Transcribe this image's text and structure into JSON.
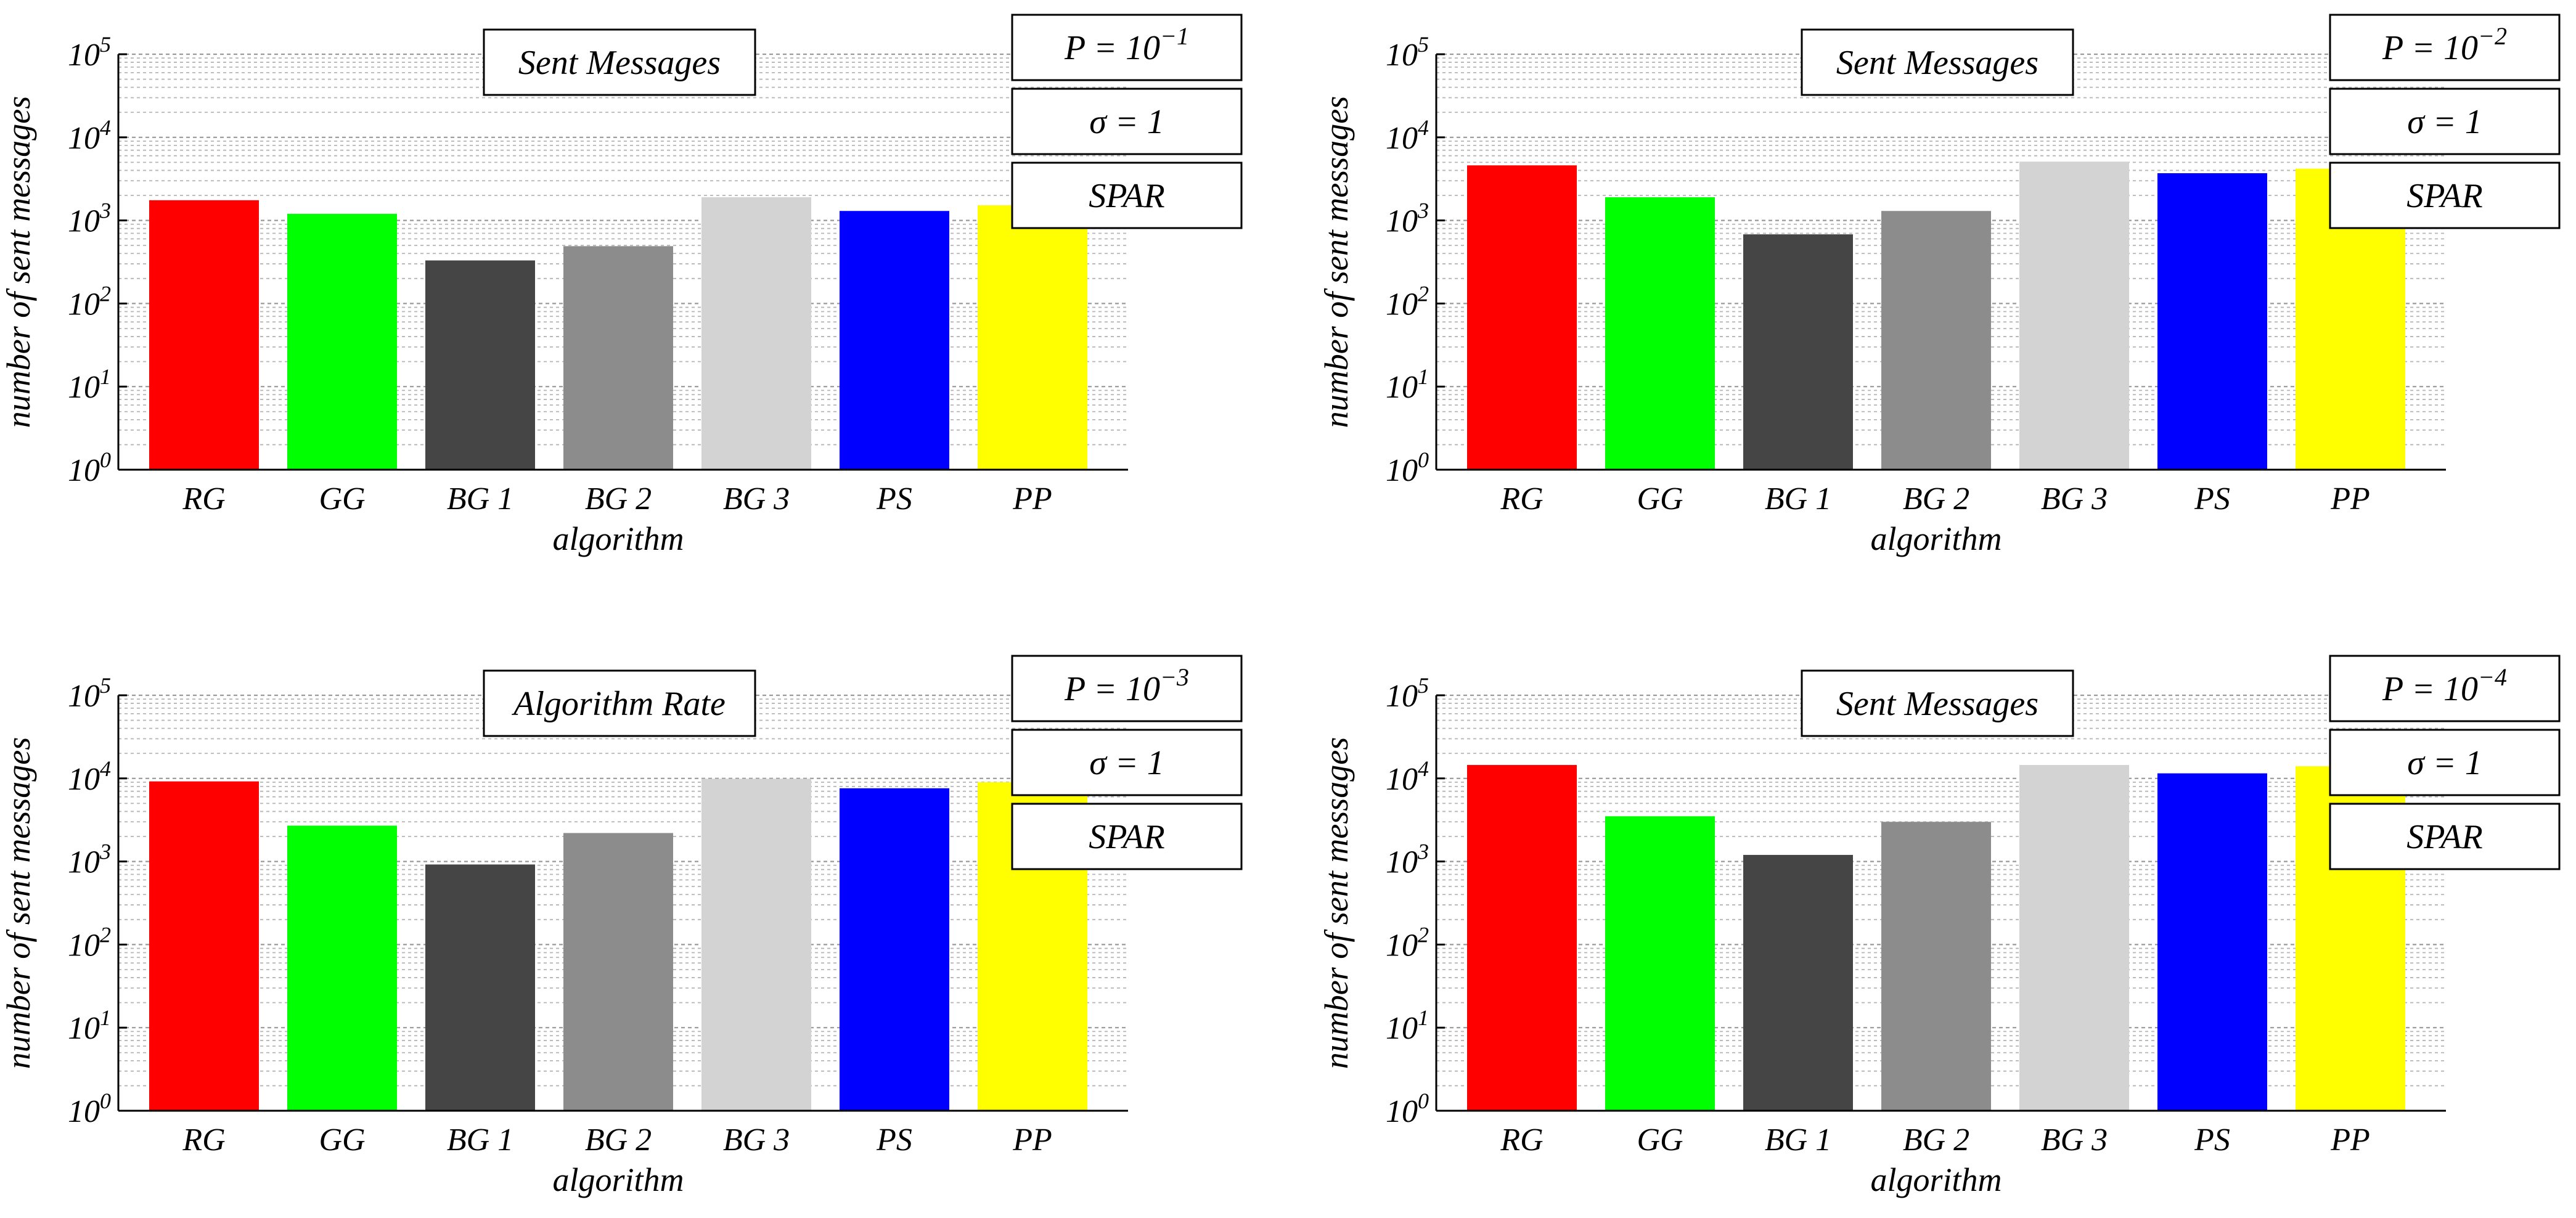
{
  "chart_data": [
    {
      "type": "bar",
      "title": "Sent Messages",
      "annotations": [
        {
          "p_base": "P = 10",
          "p_exp": "−1"
        },
        "σ = 1",
        "SPAR"
      ],
      "xlabel": "algorithm",
      "ylabel": "number of sent messages",
      "yscale": "log",
      "ylim": [
        1,
        100000
      ],
      "yticks": [
        {
          "base": "10",
          "exp": "0"
        },
        {
          "base": "10",
          "exp": "1"
        },
        {
          "base": "10",
          "exp": "2"
        },
        {
          "base": "10",
          "exp": "3"
        },
        {
          "base": "10",
          "exp": "4"
        },
        {
          "base": "10",
          "exp": "5"
        }
      ],
      "grid": true,
      "categories": [
        "RG",
        "GG",
        "BG 1",
        "BG 2",
        "BG 3",
        "PS",
        "PP"
      ],
      "values": [
        1750,
        1200,
        330,
        490,
        1900,
        1300,
        1520
      ],
      "colors": [
        "#ff0000",
        "#00ff00",
        "#454545",
        "#8c8c8c",
        "#d3d3d3",
        "#0000ff",
        "#ffff00"
      ]
    },
    {
      "type": "bar",
      "title": "Sent Messages",
      "annotations": [
        {
          "p_base": "P = 10",
          "p_exp": "−2"
        },
        "σ = 1",
        "SPAR"
      ],
      "xlabel": "algorithm",
      "ylabel": "number of sent messages",
      "yscale": "log",
      "ylim": [
        1,
        100000
      ],
      "yticks": [
        {
          "base": "10",
          "exp": "0"
        },
        {
          "base": "10",
          "exp": "1"
        },
        {
          "base": "10",
          "exp": "2"
        },
        {
          "base": "10",
          "exp": "3"
        },
        {
          "base": "10",
          "exp": "4"
        },
        {
          "base": "10",
          "exp": "5"
        }
      ],
      "grid": true,
      "categories": [
        "RG",
        "GG",
        "BG 1",
        "BG 2",
        "BG 3",
        "PS",
        "PP"
      ],
      "values": [
        4600,
        1900,
        680,
        1300,
        5100,
        3700,
        4200
      ],
      "colors": [
        "#ff0000",
        "#00ff00",
        "#454545",
        "#8c8c8c",
        "#d3d3d3",
        "#0000ff",
        "#ffff00"
      ]
    },
    {
      "type": "bar",
      "title": "Algorithm Rate",
      "annotations": [
        {
          "p_base": "P = 10",
          "p_exp": "−3"
        },
        "σ = 1",
        "SPAR"
      ],
      "xlabel": "algorithm",
      "ylabel": "number of sent messages",
      "yscale": "log",
      "ylim": [
        1,
        100000
      ],
      "yticks": [
        {
          "base": "10",
          "exp": "0"
        },
        {
          "base": "10",
          "exp": "1"
        },
        {
          "base": "10",
          "exp": "2"
        },
        {
          "base": "10",
          "exp": "3"
        },
        {
          "base": "10",
          "exp": "4"
        },
        {
          "base": "10",
          "exp": "5"
        }
      ],
      "grid": true,
      "categories": [
        "RG",
        "GG",
        "BG 1",
        "BG 2",
        "BG 3",
        "PS",
        "PP"
      ],
      "values": [
        9200,
        2700,
        920,
        2200,
        9900,
        7600,
        9000
      ],
      "colors": [
        "#ff0000",
        "#00ff00",
        "#454545",
        "#8c8c8c",
        "#d3d3d3",
        "#0000ff",
        "#ffff00"
      ]
    },
    {
      "type": "bar",
      "title": "Sent Messages",
      "annotations": [
        {
          "p_base": "P = 10",
          "p_exp": "−4"
        },
        "σ = 1",
        "SPAR"
      ],
      "xlabel": "algorithm",
      "ylabel": "number of sent messages",
      "yscale": "log",
      "ylim": [
        1,
        100000
      ],
      "yticks": [
        {
          "base": "10",
          "exp": "0"
        },
        {
          "base": "10",
          "exp": "1"
        },
        {
          "base": "10",
          "exp": "2"
        },
        {
          "base": "10",
          "exp": "3"
        },
        {
          "base": "10",
          "exp": "4"
        },
        {
          "base": "10",
          "exp": "5"
        }
      ],
      "grid": true,
      "categories": [
        "RG",
        "GG",
        "BG 1",
        "BG 2",
        "BG 3",
        "PS",
        "PP"
      ],
      "values": [
        14500,
        3500,
        1200,
        3000,
        14500,
        11500,
        14000
      ],
      "colors": [
        "#ff0000",
        "#00ff00",
        "#454545",
        "#8c8c8c",
        "#d3d3d3",
        "#0000ff",
        "#ffff00"
      ]
    }
  ]
}
